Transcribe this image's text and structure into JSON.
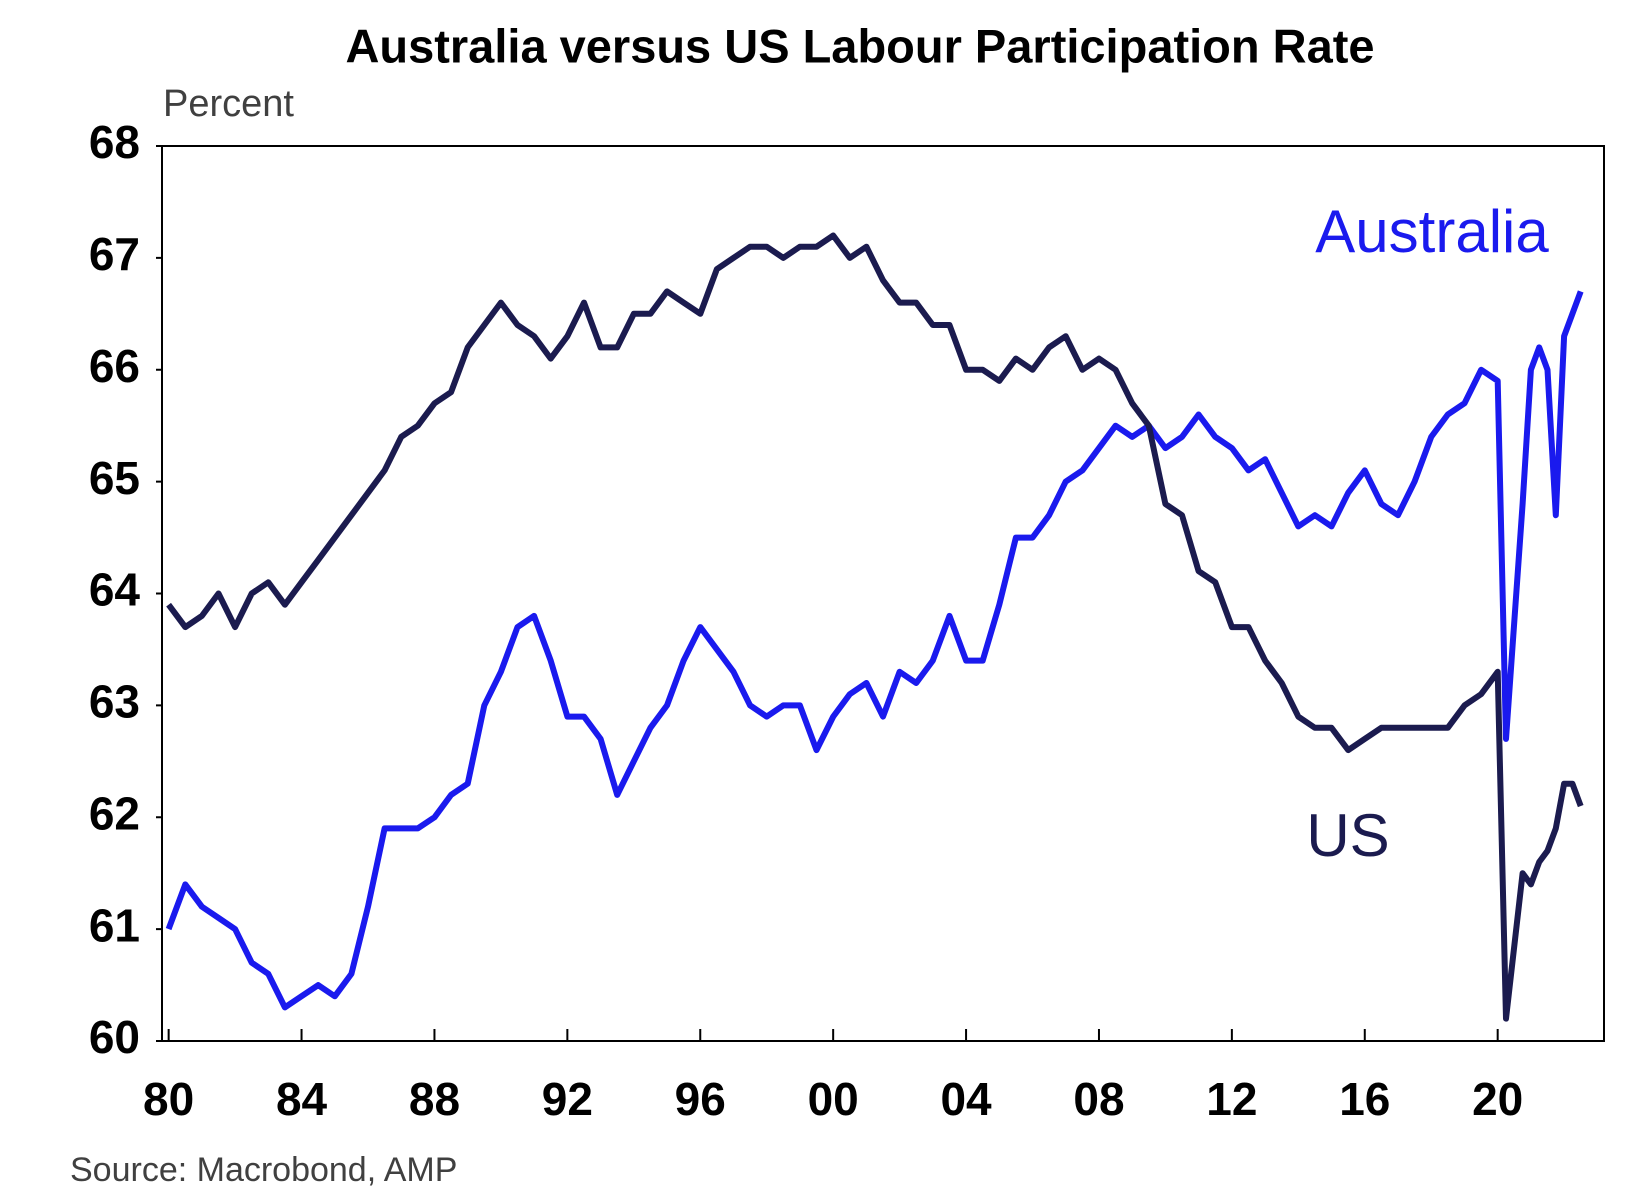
{
  "chart_data": {
    "type": "line",
    "title": "Australia versus US Labour Participation Rate",
    "y_label": "Percent",
    "source": "Source: Macrobond, AMP",
    "x": [
      1980,
      1980.5,
      1981,
      1981.5,
      1982,
      1982.5,
      1983,
      1983.5,
      1984,
      1984.5,
      1985,
      1985.5,
      1986,
      1986.5,
      1987,
      1987.5,
      1988,
      1988.5,
      1989,
      1989.5,
      1990,
      1990.5,
      1991,
      1991.5,
      1992,
      1992.5,
      1993,
      1993.5,
      1994,
      1994.5,
      1995,
      1995.5,
      1996,
      1996.5,
      1997,
      1997.5,
      1998,
      1998.5,
      1999,
      1999.5,
      2000,
      2000.5,
      2001,
      2001.5,
      2002,
      2002.5,
      2003,
      2003.5,
      2004,
      2004.5,
      2005,
      2005.5,
      2006,
      2006.5,
      2007,
      2007.5,
      2008,
      2008.5,
      2009,
      2009.5,
      2010,
      2010.5,
      2011,
      2011.5,
      2012,
      2012.5,
      2013,
      2013.5,
      2014,
      2014.5,
      2015,
      2015.5,
      2016,
      2016.5,
      2017,
      2017.5,
      2018,
      2018.5,
      2019,
      2019.5,
      2020,
      2020.25,
      2020.75,
      2021,
      2021.25,
      2021.5,
      2021.75,
      2022,
      2022.25,
      2022.5
    ],
    "series": [
      {
        "name": "Australia",
        "color": "#1a1aee",
        "values": [
          61.0,
          61.4,
          61.2,
          61.1,
          61.0,
          60.7,
          60.6,
          60.3,
          60.4,
          60.5,
          60.4,
          60.6,
          61.2,
          61.9,
          61.9,
          61.9,
          62.0,
          62.2,
          62.3,
          63.0,
          63.3,
          63.7,
          63.8,
          63.4,
          62.9,
          62.9,
          62.7,
          62.2,
          62.5,
          62.8,
          63.0,
          63.4,
          63.7,
          63.5,
          63.3,
          63.0,
          62.9,
          63.0,
          63.0,
          62.6,
          62.9,
          63.1,
          63.2,
          62.9,
          63.3,
          63.2,
          63.4,
          63.8,
          63.4,
          63.4,
          63.9,
          64.5,
          64.5,
          64.7,
          65.0,
          65.1,
          65.3,
          65.5,
          65.4,
          65.5,
          65.3,
          65.4,
          65.6,
          65.4,
          65.3,
          65.1,
          65.2,
          64.9,
          64.6,
          64.7,
          64.6,
          64.9,
          65.1,
          64.8,
          64.7,
          65.0,
          65.4,
          65.6,
          65.7,
          66.0,
          65.9,
          62.7,
          64.8,
          66.0,
          66.2,
          66.0,
          64.7,
          66.3,
          66.5,
          66.7
        ]
      },
      {
        "name": "US",
        "color": "#1b1b4f",
        "values": [
          63.9,
          63.7,
          63.8,
          64.0,
          63.7,
          64.0,
          64.1,
          63.9,
          64.1,
          64.3,
          64.5,
          64.7,
          64.9,
          65.1,
          65.4,
          65.5,
          65.7,
          65.8,
          66.2,
          66.4,
          66.6,
          66.4,
          66.3,
          66.1,
          66.3,
          66.6,
          66.2,
          66.2,
          66.5,
          66.5,
          66.7,
          66.6,
          66.5,
          66.9,
          67.0,
          67.1,
          67.1,
          67.0,
          67.1,
          67.1,
          67.2,
          67.0,
          67.1,
          66.8,
          66.6,
          66.6,
          66.4,
          66.4,
          66.0,
          66.0,
          65.9,
          66.1,
          66.0,
          66.2,
          66.3,
          66.0,
          66.1,
          66.0,
          65.7,
          65.5,
          64.8,
          64.7,
          64.2,
          64.1,
          63.7,
          63.7,
          63.4,
          63.2,
          62.9,
          62.8,
          62.8,
          62.6,
          62.7,
          62.8,
          62.8,
          62.8,
          62.8,
          62.8,
          63.0,
          63.1,
          63.3,
          60.2,
          61.5,
          61.4,
          61.6,
          61.7,
          61.9,
          62.3,
          62.3,
          62.1
        ]
      }
    ],
    "xlim": [
      1979.8,
      2023.2
    ],
    "xticks": [
      {
        "value": 1980,
        "label": "80"
      },
      {
        "value": 1984,
        "label": "84"
      },
      {
        "value": 1988,
        "label": "88"
      },
      {
        "value": 1992,
        "label": "92"
      },
      {
        "value": 1996,
        "label": "96"
      },
      {
        "value": 2000,
        "label": "00"
      },
      {
        "value": 2004,
        "label": "04"
      },
      {
        "value": 2008,
        "label": "08"
      },
      {
        "value": 2012,
        "label": "12"
      },
      {
        "value": 2016,
        "label": "16"
      },
      {
        "value": 2020,
        "label": "20"
      }
    ],
    "ylim": [
      60,
      68
    ],
    "yticks": [
      60,
      61,
      62,
      63,
      64,
      65,
      66,
      67,
      68
    ],
    "grid": false
  }
}
